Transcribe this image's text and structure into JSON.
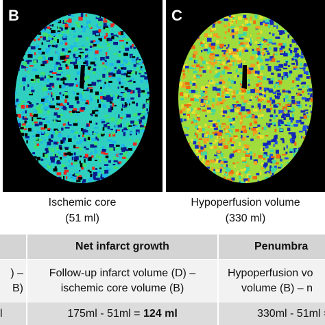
{
  "panels": [
    {
      "letter": "B",
      "caption": "Ischemic core",
      "volume": "(51 ml)"
    },
    {
      "letter": "C",
      "caption": "Hypoperfusion volume",
      "volume": "(330 ml)"
    }
  ],
  "table": {
    "header": [
      "Net infarct growth",
      "Penumbra"
    ],
    "rows": [
      {
        "left": [
          ") –",
          "B)"
        ],
        "middle": [
          "Follow-up infarct volume (D) –",
          "ischemic core volume (B)"
        ],
        "right": [
          "Hypoperfusion vo",
          "volume (B) – n"
        ]
      },
      {
        "left": [
          "l"
        ],
        "middle": [
          "175ml - 51ml = ",
          "124 ml"
        ],
        "right": [
          "330ml - 51ml ="
        ]
      }
    ]
  }
}
